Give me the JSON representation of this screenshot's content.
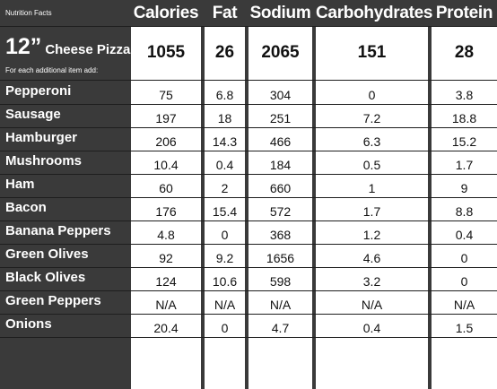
{
  "facts_label": "Nutrition Facts",
  "headers": [
    "Calories",
    "Fat",
    "Sodium",
    "Carbohydrates",
    "Protein"
  ],
  "pizza": {
    "size": "12”",
    "name": "Cheese Pizza",
    "values": [
      "1055",
      "26",
      "2065",
      "151",
      "28"
    ]
  },
  "additional_label": "For each additional item add:",
  "rows": [
    {
      "label": "Pepperoni",
      "values": [
        "75",
        "6.8",
        "304",
        "0",
        "3.8"
      ]
    },
    {
      "label": "Sausage",
      "values": [
        "197",
        "18",
        "251",
        "7.2",
        "18.8"
      ]
    },
    {
      "label": "Hamburger",
      "values": [
        "206",
        "14.3",
        "466",
        "6.3",
        "15.2"
      ]
    },
    {
      "label": "Mushrooms",
      "values": [
        "10.4",
        "0.4",
        "184",
        "0.5",
        "1.7"
      ]
    },
    {
      "label": "Ham",
      "values": [
        "60",
        "2",
        "660",
        "1",
        "9"
      ]
    },
    {
      "label": "Bacon",
      "values": [
        "176",
        "15.4",
        "572",
        "1.7",
        "8.8"
      ]
    },
    {
      "label": "Banana Peppers",
      "values": [
        "4.8",
        "0",
        "368",
        "1.2",
        "0.4"
      ]
    },
    {
      "label": "Green Olives",
      "values": [
        "92",
        "9.2",
        "1656",
        "4.6",
        "0"
      ]
    },
    {
      "label": "Black Olives",
      "values": [
        "124",
        "10.6",
        "598",
        "3.2",
        "0"
      ]
    },
    {
      "label": "Green Peppers",
      "values": [
        "N/A",
        "N/A",
        "N/A",
        "N/A",
        "N/A"
      ]
    },
    {
      "label": "Onions",
      "values": [
        "20.4",
        "0",
        "4.7",
        "0.4",
        "1.5"
      ]
    }
  ]
}
